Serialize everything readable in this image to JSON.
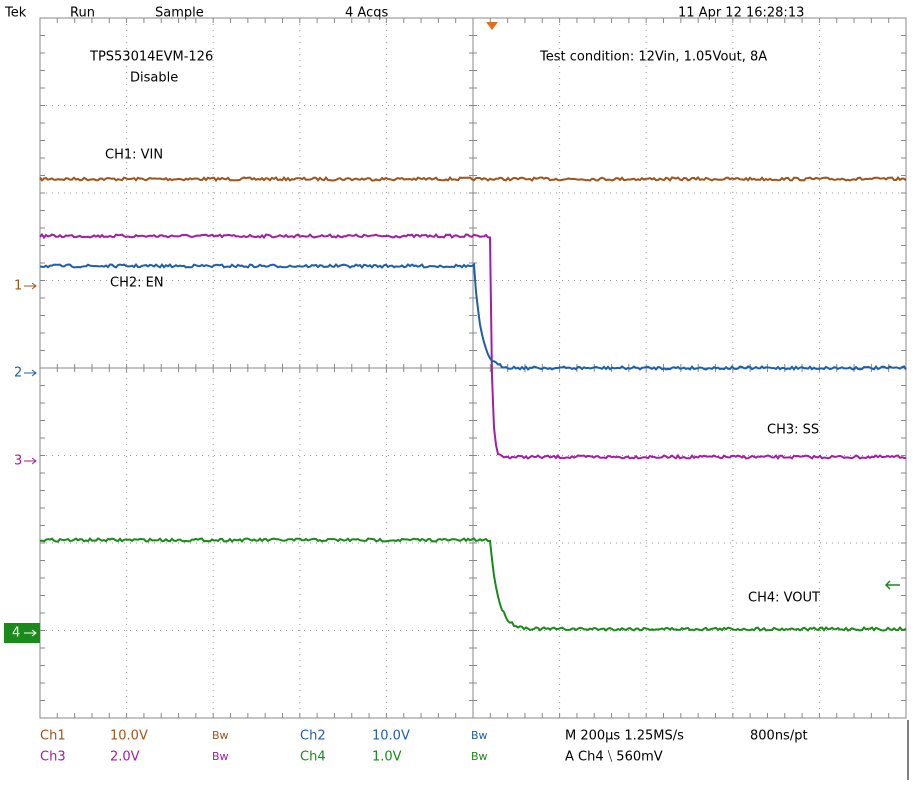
{
  "header": {
    "brand": "Tek",
    "state": "Run",
    "mode": "Sample",
    "acquisitions": "4 Acqs",
    "timestamp": "11 Apr 12 16:28:13"
  },
  "annotations": {
    "board": "TPS53014EVM-126",
    "event": "Disable",
    "condition": "Test condition: 12Vin, 1.05Vout, 8A"
  },
  "trace_labels": [
    "CH1: VIN",
    "CH2: EN",
    "CH3: SS",
    "CH4: VOUT"
  ],
  "markers": [
    "1",
    "2",
    "3",
    "4"
  ],
  "readout": {
    "row1": [
      "Ch1",
      "10.0V",
      "Bw",
      "Ch2",
      "10.0V",
      "Bw",
      "M 200µs 1.25MS/s",
      "800ns/pt"
    ],
    "row2": [
      "Ch3",
      "2.0V",
      "Bw",
      "Ch4",
      "1.0V",
      "Bw",
      "A  Ch4  ⧹  560mV"
    ]
  }
}
